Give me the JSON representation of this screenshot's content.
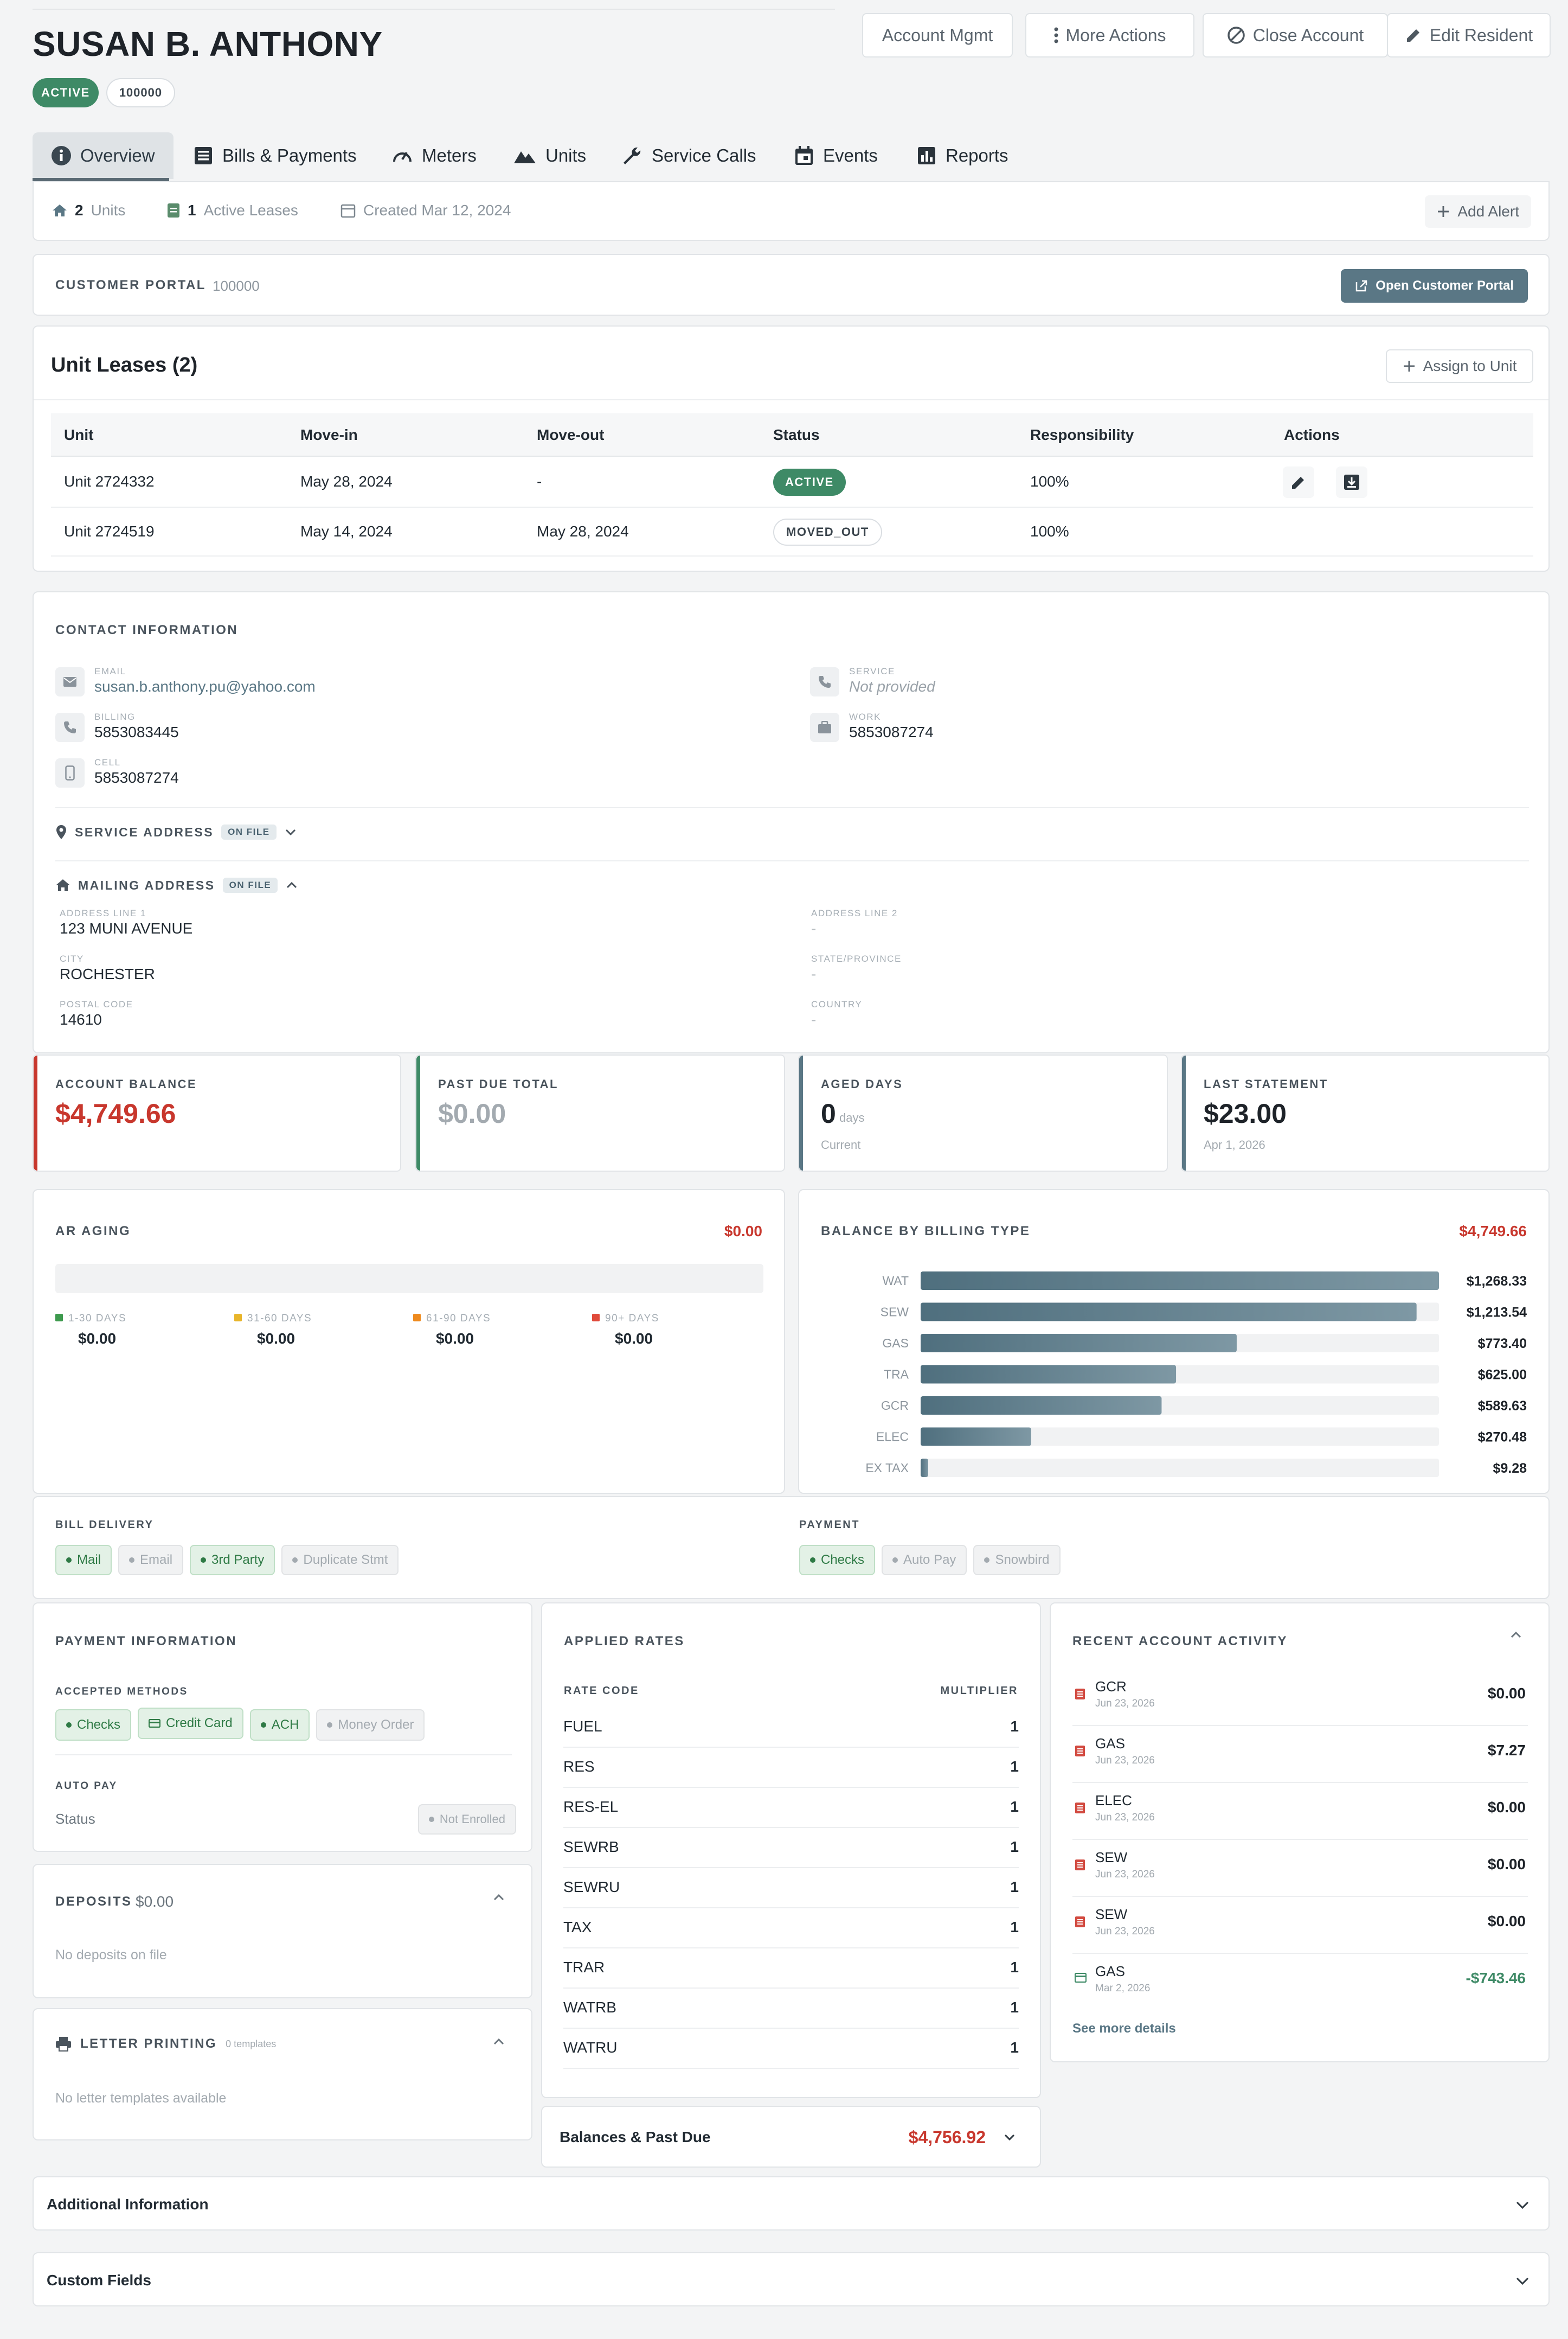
{
  "resident": {
    "name": "SUSAN B. ANTHONY",
    "status": "ACTIVE",
    "account_number": "100000"
  },
  "header_buttons": {
    "account_mgmt": "Account Mgmt",
    "more_actions": "More Actions",
    "close_account": "Close Account",
    "edit_resident": "Edit Resident"
  },
  "tabs": [
    {
      "label": "Overview",
      "icon": "info-icon"
    },
    {
      "label": "Bills & Payments",
      "icon": "list-icon"
    },
    {
      "label": "Meters",
      "icon": "gauge-icon"
    },
    {
      "label": "Units",
      "icon": "mountain-icon"
    },
    {
      "label": "Service Calls",
      "icon": "wrench-icon"
    },
    {
      "label": "Events",
      "icon": "calendar-icon"
    },
    {
      "label": "Reports",
      "icon": "bar-chart-icon"
    }
  ],
  "summary_bar": {
    "units_count": "2",
    "units_label": "Units",
    "leases_count": "1",
    "leases_label": "Active Leases",
    "created": "Created Mar 12, 2024",
    "add_alert": "Add Alert"
  },
  "portal": {
    "label": "CUSTOMER PORTAL",
    "id": "100000",
    "button": "Open Customer Portal"
  },
  "leases": {
    "title": "Unit Leases (2)",
    "assign_button": "Assign to Unit",
    "columns": [
      "Unit",
      "Move-in",
      "Move-out",
      "Status",
      "Responsibility",
      "Actions"
    ],
    "rows": [
      {
        "unit": "Unit 2724332",
        "move_in": "May 28, 2024",
        "move_out": "-",
        "status": "ACTIVE",
        "responsibility": "100%"
      },
      {
        "unit": "Unit 2724519",
        "move_in": "May 14, 2024",
        "move_out": "May 28, 2024",
        "status": "MOVED_OUT",
        "responsibility": "100%"
      }
    ]
  },
  "contact": {
    "title": "CONTACT INFORMATION",
    "email_label": "EMAIL",
    "email": "susan.b.anthony.pu@yahoo.com",
    "service_label": "SERVICE",
    "service": "Not provided",
    "billing_label": "BILLING",
    "billing": "5853083445",
    "work_label": "WORK",
    "work": "5853087274",
    "cell_label": "CELL",
    "cell": "5853087274"
  },
  "service_address": {
    "label": "SERVICE ADDRESS",
    "badge": "ON FILE"
  },
  "mailing_address": {
    "label": "MAILING ADDRESS",
    "badge": "ON FILE",
    "line1_label": "ADDRESS LINE 1",
    "line1": "123 MUNI AVENUE",
    "line2_label": "ADDRESS LINE 2",
    "line2": "-",
    "city_label": "CITY",
    "city": "ROCHESTER",
    "state_label": "STATE/PROVINCE",
    "state": "-",
    "postal_label": "POSTAL CODE",
    "postal": "14610",
    "country_label": "COUNTRY",
    "country": "-"
  },
  "stats": {
    "balance_label": "ACCOUNT BALANCE",
    "balance": "$4,749.66",
    "past_due_label": "PAST DUE TOTAL",
    "past_due": "$0.00",
    "aged_label": "AGED DAYS",
    "aged_value": "0",
    "aged_unit": "days",
    "aged_sub": "Current",
    "last_label": "LAST STATEMENT",
    "last_value": "$23.00",
    "last_date": "Apr 1, 2026"
  },
  "ar_aging": {
    "title": "AR AGING",
    "total": "$0.00",
    "buckets": [
      {
        "label": "1-30 DAYS",
        "value": "$0.00",
        "color": "#3e9a4e"
      },
      {
        "label": "31-60 DAYS",
        "value": "$0.00",
        "color": "#e8b52a"
      },
      {
        "label": "61-90 DAYS",
        "value": "$0.00",
        "color": "#ee8a1e"
      },
      {
        "label": "90+ DAYS",
        "value": "$0.00",
        "color": "#e04a3a"
      }
    ]
  },
  "chart_data": {
    "type": "bar",
    "orientation": "horizontal",
    "title": "BALANCE BY BILLING TYPE",
    "total": "$4,749.66",
    "categories": [
      "WAT",
      "SEW",
      "GAS",
      "TRA",
      "GCR",
      "ELEC",
      "EX TAX"
    ],
    "values": [
      1268.33,
      1213.54,
      773.4,
      625.0,
      589.63,
      270.48,
      9.28
    ],
    "value_labels": [
      "$1,268.33",
      "$1,213.54",
      "$773.40",
      "$625.00",
      "$589.63",
      "$270.48",
      "$9.28"
    ],
    "xlim": [
      0,
      1268.33
    ],
    "grid": false,
    "bar_color": "#5d7d8c"
  },
  "delivery": {
    "bill_label": "BILL DELIVERY",
    "bill_chips": [
      {
        "label": "Mail",
        "on": true
      },
      {
        "label": "Email",
        "on": false
      },
      {
        "label": "3rd Party",
        "on": true
      },
      {
        "label": "Duplicate Stmt",
        "on": false
      }
    ],
    "payment_label": "PAYMENT",
    "payment_chips": [
      {
        "label": "Checks",
        "on": true
      },
      {
        "label": "Auto Pay",
        "on": false
      },
      {
        "label": "Snowbird",
        "on": false
      }
    ]
  },
  "payment_info": {
    "title": "PAYMENT INFORMATION",
    "methods_label": "ACCEPTED METHODS",
    "methods": [
      {
        "label": "Checks",
        "on": true,
        "icon": "dot"
      },
      {
        "label": "Credit Card",
        "on": true,
        "icon": "card"
      },
      {
        "label": "ACH",
        "on": true,
        "icon": "dot"
      },
      {
        "label": "Money Order",
        "on": false,
        "icon": "dot"
      }
    ],
    "autopay_label": "AUTO PAY",
    "status_label": "Status",
    "status_value": "Not Enrolled"
  },
  "deposits": {
    "title": "DEPOSITS",
    "amount": "$0.00",
    "empty": "No deposits on file"
  },
  "letters": {
    "title": "LETTER PRINTING",
    "count": "0 templates",
    "empty": "No letter templates available"
  },
  "rates": {
    "title": "APPLIED RATES",
    "col_code": "RATE CODE",
    "col_mult": "MULTIPLIER",
    "rows": [
      {
        "code": "FUEL",
        "mult": "1"
      },
      {
        "code": "RES",
        "mult": "1"
      },
      {
        "code": "RES-EL",
        "mult": "1"
      },
      {
        "code": "SEWRB",
        "mult": "1"
      },
      {
        "code": "SEWRU",
        "mult": "1"
      },
      {
        "code": "TAX",
        "mult": "1"
      },
      {
        "code": "TRAR",
        "mult": "1"
      },
      {
        "code": "WATRB",
        "mult": "1"
      },
      {
        "code": "WATRU",
        "mult": "1"
      }
    ]
  },
  "balances": {
    "label": "Balances & Past Due",
    "amount": "$4,756.92"
  },
  "activity": {
    "title": "RECENT ACCOUNT ACTIVITY",
    "rows": [
      {
        "name": "GCR",
        "date": "Jun 23, 2026",
        "amount": "$0.00",
        "kind": "bill"
      },
      {
        "name": "GAS",
        "date": "Jun 23, 2026",
        "amount": "$7.27",
        "kind": "bill"
      },
      {
        "name": "ELEC",
        "date": "Jun 23, 2026",
        "amount": "$0.00",
        "kind": "bill"
      },
      {
        "name": "SEW",
        "date": "Jun 23, 2026",
        "amount": "$0.00",
        "kind": "bill"
      },
      {
        "name": "SEW",
        "date": "Jun 23, 2026",
        "amount": "$0.00",
        "kind": "bill"
      },
      {
        "name": "GAS",
        "date": "Mar 2, 2026",
        "amount": "-$743.46",
        "kind": "payment"
      }
    ],
    "more": "See more details"
  },
  "additional_info": "Additional Information",
  "custom_fields": "Custom Fields",
  "colors": {
    "accent": "#5a7785",
    "danger": "#c8372d",
    "success": "#3e8a66",
    "payment_green": "#3e8a66"
  }
}
